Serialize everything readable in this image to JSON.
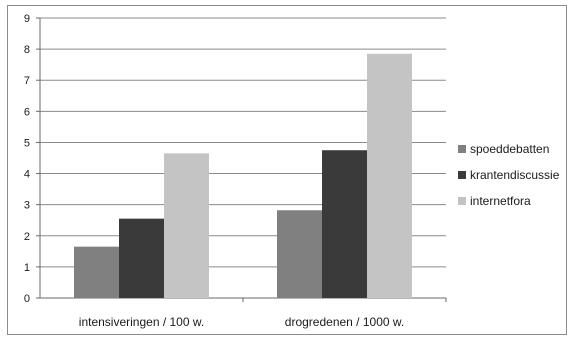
{
  "chart_data": {
    "type": "bar",
    "categories": [
      "intensiveringen / 100 w.",
      "drogredenen / 1000 w."
    ],
    "series": [
      {
        "name": "spoeddebatten",
        "values": [
          1.65,
          2.82
        ],
        "color": "#808080"
      },
      {
        "name": "krantendiscussie",
        "values": [
          2.55,
          4.75
        ],
        "color": "#3a3a3a"
      },
      {
        "name": "internetfora",
        "values": [
          4.65,
          7.85
        ],
        "color": "#c4c4c4"
      }
    ],
    "yticks": [
      "0",
      "1",
      "2",
      "3",
      "4",
      "5",
      "6",
      "7",
      "8",
      "9"
    ],
    "ylim": [
      0,
      9
    ],
    "grid": true,
    "legend_position": "right",
    "title": "",
    "xlabel": "",
    "ylabel": ""
  }
}
